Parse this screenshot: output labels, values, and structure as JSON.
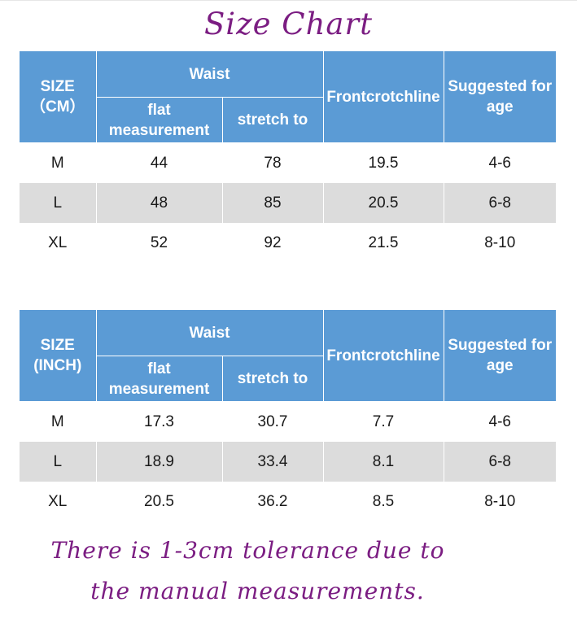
{
  "title": "Size Chart",
  "colors": {
    "header_bg": "#5b9bd5",
    "header_text": "#ffffff",
    "shaded_row": "#dcdcdc",
    "accent_text": "#7b1d82"
  },
  "headers": {
    "waist": "Waist",
    "flat": "flat measurement",
    "stretch": "stretch to",
    "front": "Frontcrotchline",
    "age": "Suggested for age"
  },
  "tables": [
    {
      "size_label": "SIZE （CM）",
      "rows": [
        {
          "size": "M",
          "flat": "44",
          "stretch": "78",
          "front": "19.5",
          "age": "4-6"
        },
        {
          "size": "L",
          "flat": "48",
          "stretch": "85",
          "front": "20.5",
          "age": "6-8"
        },
        {
          "size": "XL",
          "flat": "52",
          "stretch": "92",
          "front": "21.5",
          "age": "8-10"
        }
      ]
    },
    {
      "size_label": "SIZE (INCH)",
      "rows": [
        {
          "size": "M",
          "flat": "17.3",
          "stretch": "30.7",
          "front": "7.7",
          "age": "4-6"
        },
        {
          "size": "L",
          "flat": "18.9",
          "stretch": "33.4",
          "front": "8.1",
          "age": "6-8"
        },
        {
          "size": "XL",
          "flat": "20.5",
          "stretch": "36.2",
          "front": "8.5",
          "age": "8-10"
        }
      ]
    }
  ],
  "note": {
    "line1": "There is 1-3cm tolerance due to",
    "line2": "the manual measurements."
  }
}
